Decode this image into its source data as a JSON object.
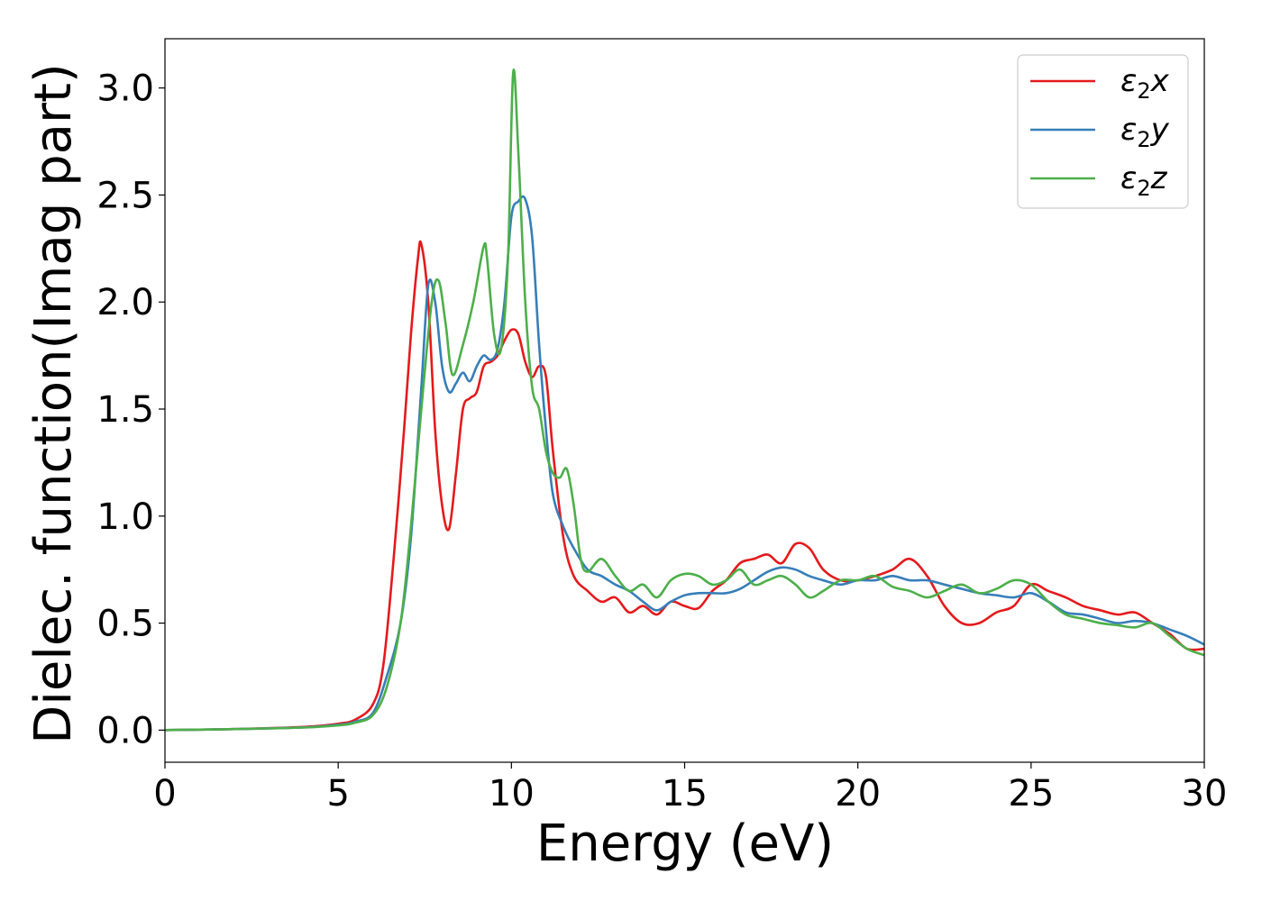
{
  "chart_data": {
    "type": "line",
    "xlabel": "Energy (eV)",
    "ylabel": "Dielec. function(Imag part)",
    "xlim": [
      0,
      30
    ],
    "ylim": [
      -0.15,
      3.23
    ],
    "xticks": [
      0,
      5,
      10,
      15,
      20,
      25,
      30
    ],
    "xtick_labels": [
      "0",
      "5",
      "10",
      "15",
      "20",
      "25",
      "30"
    ],
    "yticks": [
      0.0,
      0.5,
      1.0,
      1.5,
      2.0,
      2.5,
      3.0
    ],
    "ytick_labels": [
      "0.0",
      "0.5",
      "1.0",
      "1.5",
      "2.0",
      "2.5",
      "3.0"
    ],
    "grid": false,
    "legend_position": "top-right",
    "series": [
      {
        "name": "ε₂x",
        "legend_main": "ε",
        "legend_sub": "2",
        "legend_tail": "x",
        "color": "#e41a1c",
        "x": [
          0,
          2,
          4,
          5,
          5.5,
          6.0,
          6.3,
          6.6,
          6.9,
          7.1,
          7.3,
          7.4,
          7.6,
          7.8,
          8.0,
          8.2,
          8.4,
          8.6,
          8.8,
          9.0,
          9.2,
          9.4,
          9.6,
          9.8,
          10.0,
          10.2,
          10.4,
          10.6,
          10.8,
          11.0,
          11.2,
          11.5,
          11.8,
          12.2,
          12.6,
          13.0,
          13.4,
          13.8,
          14.2,
          14.6,
          15.0,
          15.4,
          15.8,
          16.2,
          16.6,
          17.0,
          17.4,
          17.8,
          18.2,
          18.6,
          19.0,
          19.5,
          20.0,
          20.5,
          21.0,
          21.5,
          22.0,
          22.5,
          23.0,
          23.5,
          24.0,
          24.5,
          25.0,
          25.5,
          26.0,
          26.5,
          27.0,
          27.5,
          28.0,
          28.5,
          29.0,
          29.5,
          30.0
        ],
        "values": [
          0.0,
          0.005,
          0.015,
          0.03,
          0.05,
          0.12,
          0.3,
          0.8,
          1.4,
          1.85,
          2.2,
          2.27,
          2.0,
          1.4,
          1.05,
          0.94,
          1.2,
          1.5,
          1.55,
          1.58,
          1.7,
          1.72,
          1.75,
          1.82,
          1.87,
          1.85,
          1.72,
          1.65,
          1.7,
          1.65,
          1.3,
          0.9,
          0.72,
          0.65,
          0.6,
          0.62,
          0.55,
          0.58,
          0.54,
          0.6,
          0.58,
          0.57,
          0.65,
          0.7,
          0.78,
          0.8,
          0.82,
          0.78,
          0.87,
          0.85,
          0.75,
          0.7,
          0.7,
          0.72,
          0.75,
          0.8,
          0.72,
          0.58,
          0.5,
          0.5,
          0.55,
          0.58,
          0.68,
          0.65,
          0.62,
          0.58,
          0.56,
          0.54,
          0.55,
          0.5,
          0.45,
          0.38,
          0.38
        ]
      },
      {
        "name": "ε₂y",
        "legend_main": "ε",
        "legend_sub": "2",
        "legend_tail": "y",
        "color": "#377eb8",
        "x": [
          0,
          2,
          4,
          5,
          5.5,
          6.0,
          6.4,
          6.8,
          7.1,
          7.4,
          7.6,
          7.8,
          8.0,
          8.2,
          8.4,
          8.6,
          8.8,
          9.0,
          9.2,
          9.4,
          9.6,
          9.8,
          10.0,
          10.2,
          10.4,
          10.6,
          10.8,
          11.0,
          11.2,
          11.5,
          11.8,
          12.2,
          12.6,
          13.0,
          13.4,
          13.8,
          14.2,
          14.6,
          15.0,
          15.4,
          15.8,
          16.2,
          16.6,
          17.0,
          17.4,
          17.8,
          18.2,
          18.6,
          19.0,
          19.5,
          20.0,
          20.5,
          21.0,
          21.5,
          22.0,
          22.5,
          23.0,
          23.5,
          24.0,
          24.5,
          25.0,
          25.5,
          26.0,
          26.5,
          27.0,
          27.5,
          28.0,
          28.5,
          29.0,
          29.5,
          30.0
        ],
        "values": [
          0.0,
          0.005,
          0.013,
          0.025,
          0.04,
          0.08,
          0.25,
          0.5,
          0.9,
          1.6,
          2.08,
          2.0,
          1.7,
          1.58,
          1.62,
          1.67,
          1.63,
          1.7,
          1.75,
          1.73,
          1.78,
          2.0,
          2.4,
          2.47,
          2.48,
          2.3,
          1.8,
          1.4,
          1.1,
          0.95,
          0.85,
          0.75,
          0.72,
          0.68,
          0.65,
          0.6,
          0.56,
          0.6,
          0.63,
          0.64,
          0.64,
          0.64,
          0.66,
          0.7,
          0.74,
          0.76,
          0.75,
          0.72,
          0.7,
          0.68,
          0.7,
          0.7,
          0.72,
          0.7,
          0.7,
          0.68,
          0.66,
          0.64,
          0.63,
          0.62,
          0.64,
          0.6,
          0.55,
          0.54,
          0.52,
          0.5,
          0.51,
          0.5,
          0.47,
          0.44,
          0.4
        ]
      },
      {
        "name": "ε₂z",
        "legend_main": "ε",
        "legend_sub": "2",
        "legend_tail": "z",
        "color": "#4daf4a",
        "x": [
          0,
          2,
          4,
          5,
          5.5,
          6.0,
          6.4,
          6.8,
          7.1,
          7.4,
          7.7,
          7.9,
          8.1,
          8.3,
          8.6,
          8.9,
          9.2,
          9.3,
          9.5,
          9.7,
          9.9,
          10.05,
          10.2,
          10.4,
          10.6,
          10.8,
          11.0,
          11.2,
          11.4,
          11.6,
          11.8,
          12.0,
          12.2,
          12.6,
          13.0,
          13.4,
          13.8,
          14.2,
          14.6,
          15.0,
          15.4,
          15.8,
          16.2,
          16.6,
          17.0,
          17.4,
          17.8,
          18.2,
          18.6,
          19.0,
          19.5,
          20.0,
          20.5,
          21.0,
          21.5,
          22.0,
          22.5,
          23.0,
          23.5,
          24.0,
          24.5,
          25.0,
          25.5,
          26.0,
          26.5,
          27.0,
          27.5,
          28.0,
          28.5,
          29.0,
          29.5,
          30.0
        ],
        "values": [
          0.0,
          0.005,
          0.012,
          0.022,
          0.035,
          0.07,
          0.2,
          0.5,
          0.95,
          1.5,
          2.0,
          2.1,
          1.9,
          1.66,
          1.8,
          2.0,
          2.26,
          2.2,
          1.85,
          1.78,
          2.2,
          3.07,
          2.7,
          2.0,
          1.6,
          1.5,
          1.3,
          1.2,
          1.18,
          1.22,
          1.05,
          0.8,
          0.74,
          0.8,
          0.72,
          0.65,
          0.68,
          0.62,
          0.7,
          0.73,
          0.72,
          0.68,
          0.7,
          0.75,
          0.68,
          0.7,
          0.72,
          0.68,
          0.62,
          0.65,
          0.7,
          0.7,
          0.72,
          0.67,
          0.65,
          0.62,
          0.65,
          0.68,
          0.64,
          0.66,
          0.7,
          0.68,
          0.6,
          0.54,
          0.52,
          0.5,
          0.49,
          0.48,
          0.5,
          0.44,
          0.38,
          0.35
        ]
      }
    ]
  }
}
